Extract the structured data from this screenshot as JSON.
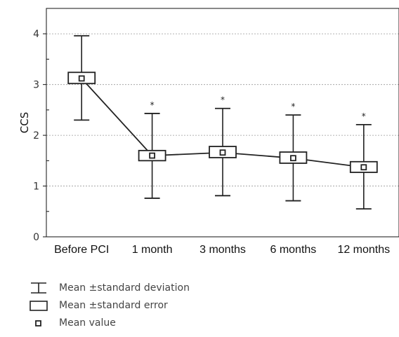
{
  "chart_data": {
    "type": "boxplot",
    "categories": [
      "Before PCI",
      "1 month",
      "3 months",
      "6 months",
      "12 months"
    ],
    "ylabel": "CCS",
    "ylim": [
      0,
      4.5
    ],
    "yticks": [
      0,
      1,
      2,
      3,
      4
    ],
    "grid": true,
    "series": [
      {
        "mean": [
          3.12,
          1.6,
          1.66,
          1.55,
          1.37
        ],
        "se_upper": [
          3.24,
          1.7,
          1.78,
          1.67,
          1.48
        ],
        "se_lower": [
          3.02,
          1.5,
          1.56,
          1.45,
          1.27
        ],
        "sd_upper": [
          3.96,
          2.43,
          2.53,
          2.4,
          2.21
        ],
        "sd_lower": [
          2.3,
          0.76,
          0.81,
          0.71,
          0.55
        ]
      }
    ],
    "significance": [
      "",
      "*",
      "*",
      "*",
      "*"
    ],
    "legend": [
      {
        "label": "Mean ±standard deviation",
        "symbol": "whisker"
      },
      {
        "label": "Mean ±standard error",
        "symbol": "box"
      },
      {
        "label": "Mean value",
        "symbol": "point"
      }
    ]
  }
}
